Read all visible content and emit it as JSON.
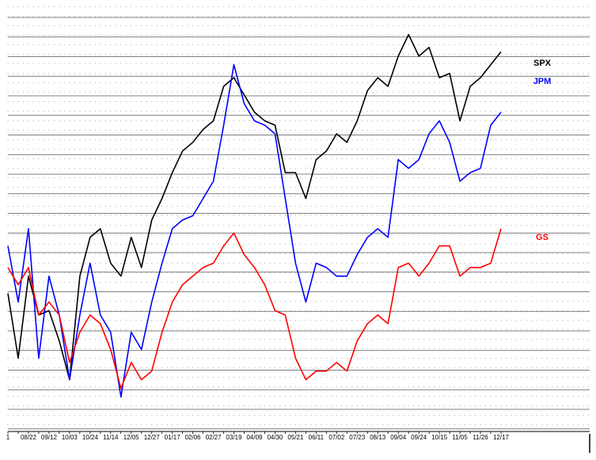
{
  "chart_data": {
    "type": "line",
    "categories": [
      "1",
      null,
      "08/22",
      null,
      "09/12",
      null,
      "10/03",
      null,
      "10/24",
      null,
      "11/14",
      null,
      "12/05",
      null,
      "12/27",
      null,
      "01/17",
      null,
      "02/06",
      null,
      "02/27",
      null,
      "03/19",
      null,
      "04/09",
      null,
      "04/30",
      null,
      "05/21",
      null,
      "06/11",
      null,
      "07/02",
      null,
      "07/23",
      null,
      "08/13",
      null,
      "09/04",
      null,
      "09/24",
      null,
      "10/15",
      null,
      "11/05",
      null,
      "11/26",
      null,
      "12/17"
    ],
    "series": [
      {
        "name": "SPX",
        "color": "#000000",
        "values": [
          32,
          17,
          36,
          27,
          28,
          21,
          12,
          36,
          45,
          47,
          39,
          36,
          45,
          38,
          49,
          54,
          60,
          65,
          67,
          70,
          72,
          80,
          82,
          78,
          74,
          72,
          71,
          60,
          60,
          54,
          63,
          65,
          69,
          67,
          72,
          79,
          82,
          80,
          87,
          92,
          87,
          89,
          82,
          83,
          72,
          80,
          82,
          85,
          88
        ]
      },
      {
        "name": "JPM",
        "color": "#0000ff",
        "values": [
          43,
          30,
          47,
          17,
          36,
          27,
          12,
          27,
          39,
          27,
          23,
          8,
          23,
          19,
          30,
          39,
          47,
          49,
          50,
          54,
          58,
          71,
          85,
          76,
          72,
          71,
          69,
          54,
          39,
          30,
          39,
          38,
          36,
          36,
          41,
          45,
          47,
          45,
          63,
          61,
          63,
          69,
          72,
          67,
          58,
          60,
          61,
          71,
          74
        ]
      },
      {
        "name": "GS",
        "color": "#ff0000",
        "values": [
          38,
          34,
          38,
          27,
          30,
          27,
          16,
          23,
          27,
          25,
          19,
          10,
          16,
          12,
          14,
          23,
          30,
          34,
          36,
          38,
          39,
          43,
          46,
          41,
          38,
          34,
          28,
          27,
          17,
          12,
          14,
          14,
          16,
          14,
          21,
          25,
          27,
          25,
          38,
          39,
          36,
          39,
          43,
          43,
          36,
          38,
          38,
          39,
          47
        ]
      }
    ],
    "ylim": [
      0,
      100
    ]
  }
}
